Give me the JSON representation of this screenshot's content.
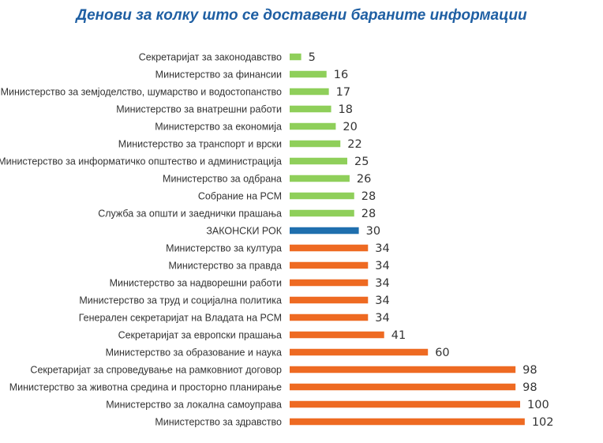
{
  "chart_data": {
    "type": "bar",
    "orientation": "horizontal",
    "title": "Денови за колку што се доставени бараните информации",
    "categories": [
      "Секретаријат за законодавство",
      "Министерство за финансии",
      "Министерство за земјоделство, шумарство и водостопанство",
      "Министерство за внатрешни работи",
      "Министерство за економија",
      "Министерство за транспорт и врски",
      "Министерство за информатичко општество и администрација",
      "Министерство за одбрана",
      "Собрание на РСМ",
      "Служба за општи и заеднички прашања",
      "ЗАКОНСКИ РОК",
      "Министерство за култура",
      "Министерство за правда",
      "Министерство за надворешни работи",
      "Министерство за труд и социјална политика",
      "Генерален секретаријат на Владата на РСМ",
      "Секретаријат за европски прашања",
      "Министерство за образование и наука",
      "Секретаријат за спроведување на рамковниот договор",
      "Министерство за животна средина и просторно планирање",
      "Министерство за локална самоуправа",
      "Министерство за здравство"
    ],
    "values": [
      5,
      16,
      17,
      18,
      20,
      22,
      25,
      26,
      28,
      28,
      30,
      34,
      34,
      34,
      34,
      34,
      41,
      60,
      98,
      98,
      100,
      102
    ],
    "xlim": [
      0,
      102
    ],
    "grid": false,
    "legend": "none",
    "colors": {
      "below_deadline": "#8fcf5a",
      "deadline": "#1f6fae",
      "above_deadline": "#ee6a22"
    },
    "deadline_value": 30
  }
}
